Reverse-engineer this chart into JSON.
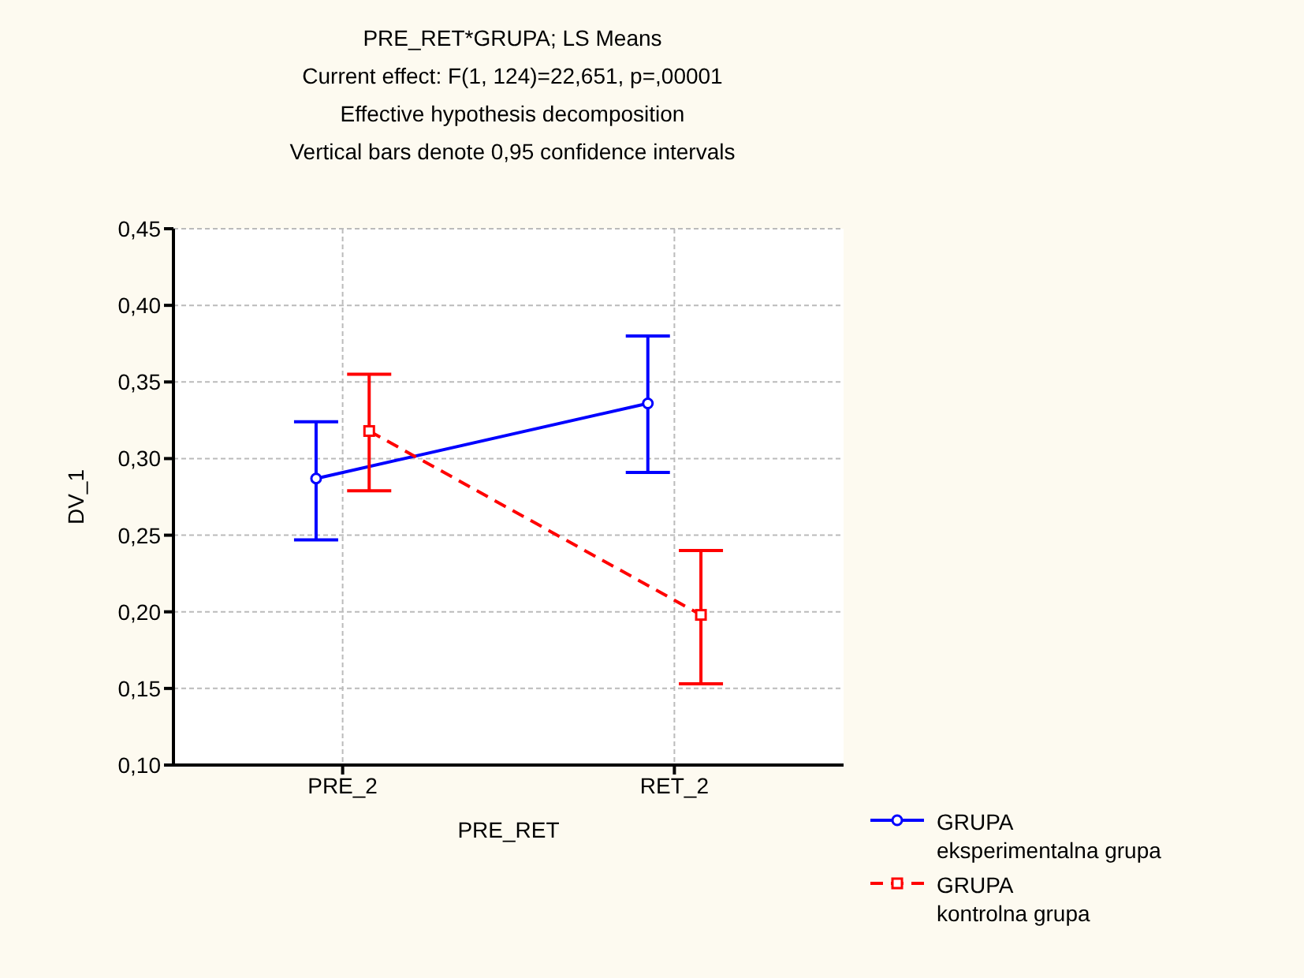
{
  "chart_data": {
    "type": "line",
    "title": "PRE_RET*GRUPA; LS Means",
    "subtitle": "Current effect: F(1, 124)=22,651, p=,00001",
    "annotations": [
      "Effective hypothesis decomposition",
      "Vertical bars denote 0,95 confidence intervals"
    ],
    "xlabel": "PRE_RET",
    "ylabel": "DV_1",
    "categories": [
      "PRE_2",
      "RET_2"
    ],
    "series": [
      {
        "name": "GRUPA\neksperimentalna grupa",
        "color": "#0000ff",
        "values": [
          0.287,
          0.336
        ],
        "errors": [
          [
            0.247,
            0.324
          ],
          [
            0.291,
            0.38
          ]
        ],
        "marker": "circle",
        "line_style": "solid"
      },
      {
        "name": "GRUPA\nkontrolna grupa",
        "color": "#ff0000",
        "values": [
          0.318,
          0.198
        ],
        "errors": [
          [
            0.279,
            0.355
          ],
          [
            0.153,
            0.24
          ]
        ],
        "marker": "square",
        "line_style": "dashed"
      }
    ],
    "ylim": [
      0.1,
      0.45
    ],
    "yticks": [
      {
        "value": 0.1,
        "label": "0,10"
      },
      {
        "value": 0.15,
        "label": "0,15"
      },
      {
        "value": 0.2,
        "label": "0,20"
      },
      {
        "value": 0.25,
        "label": "0,25"
      },
      {
        "value": 0.3,
        "label": "0,30"
      },
      {
        "value": 0.35,
        "label": "0,35"
      },
      {
        "value": 0.4,
        "label": "0,40"
      },
      {
        "value": 0.45,
        "label": "0,45"
      }
    ],
    "grid": true,
    "legend": "bottom right"
  }
}
